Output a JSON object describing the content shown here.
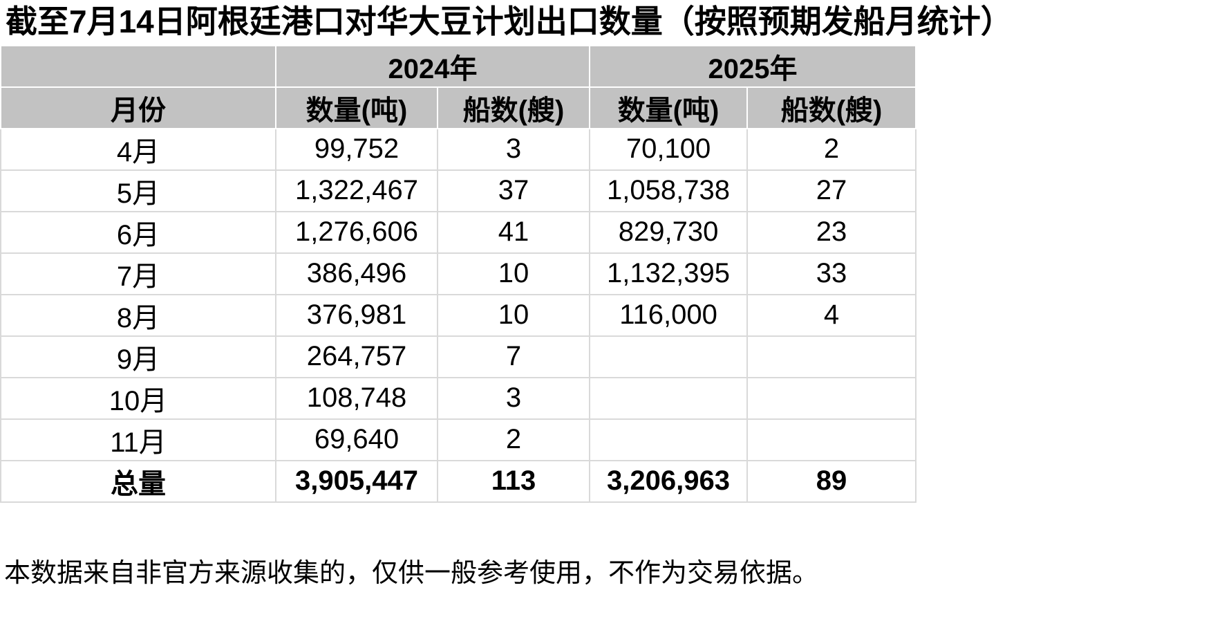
{
  "title": "截至7月14日阿根廷港口对华大豆计划出口数量（按照预期发船月统计）",
  "footnote": "本数据来自非官方来源收集的，仅供一般参考使用，不作为交易依据。",
  "table": {
    "year_headers": [
      "2024年",
      "2025年"
    ],
    "col_headers": [
      "月份",
      "数量(吨)",
      "船数(艘)",
      "数量(吨)",
      "船数(艘)"
    ],
    "rows": [
      [
        "4月",
        "99,752",
        "3",
        "70,100",
        "2"
      ],
      [
        "5月",
        "1,322,467",
        "37",
        "1,058,738",
        "27"
      ],
      [
        "6月",
        "1,276,606",
        "41",
        "829,730",
        "23"
      ],
      [
        "7月",
        "386,496",
        "10",
        "1,132,395",
        "33"
      ],
      [
        "8月",
        "376,981",
        "10",
        "116,000",
        "4"
      ],
      [
        "9月",
        "264,757",
        "7",
        "",
        ""
      ],
      [
        "10月",
        "108,748",
        "3",
        "",
        ""
      ],
      [
        "11月",
        "69,640",
        "2",
        "",
        ""
      ]
    ],
    "total_row": [
      "总量",
      "3,905,447",
      "113",
      "3,206,963",
      "89"
    ],
    "colors": {
      "header_bg": "#c2c2c2",
      "cell_border": "#d9d9d9",
      "header_border": "#ffffff",
      "text": "#000000"
    }
  },
  "chart_data": {
    "type": "table",
    "title": "截至7月14日阿根廷港口对华大豆计划出口数量（按照预期发船月统计）",
    "column_groups": [
      "",
      "2024年",
      "2024年",
      "2025年",
      "2025年"
    ],
    "columns": [
      "月份",
      "数量(吨)",
      "船数(艘)",
      "数量(吨)",
      "船数(艘)"
    ],
    "rows": [
      [
        "4月",
        99752,
        3,
        70100,
        2
      ],
      [
        "5月",
        1322467,
        37,
        1058738,
        27
      ],
      [
        "6月",
        1276606,
        41,
        829730,
        23
      ],
      [
        "7月",
        386496,
        10,
        1132395,
        33
      ],
      [
        "8月",
        376981,
        10,
        116000,
        4
      ],
      [
        "9月",
        264757,
        7,
        null,
        null
      ],
      [
        "10月",
        108748,
        3,
        null,
        null
      ],
      [
        "11月",
        69640,
        2,
        null,
        null
      ]
    ],
    "totals": [
      "总量",
      3905447,
      113,
      3206963,
      89
    ],
    "footnote": "本数据来自非官方来源收集的，仅供一般参考使用，不作为交易依据。"
  }
}
